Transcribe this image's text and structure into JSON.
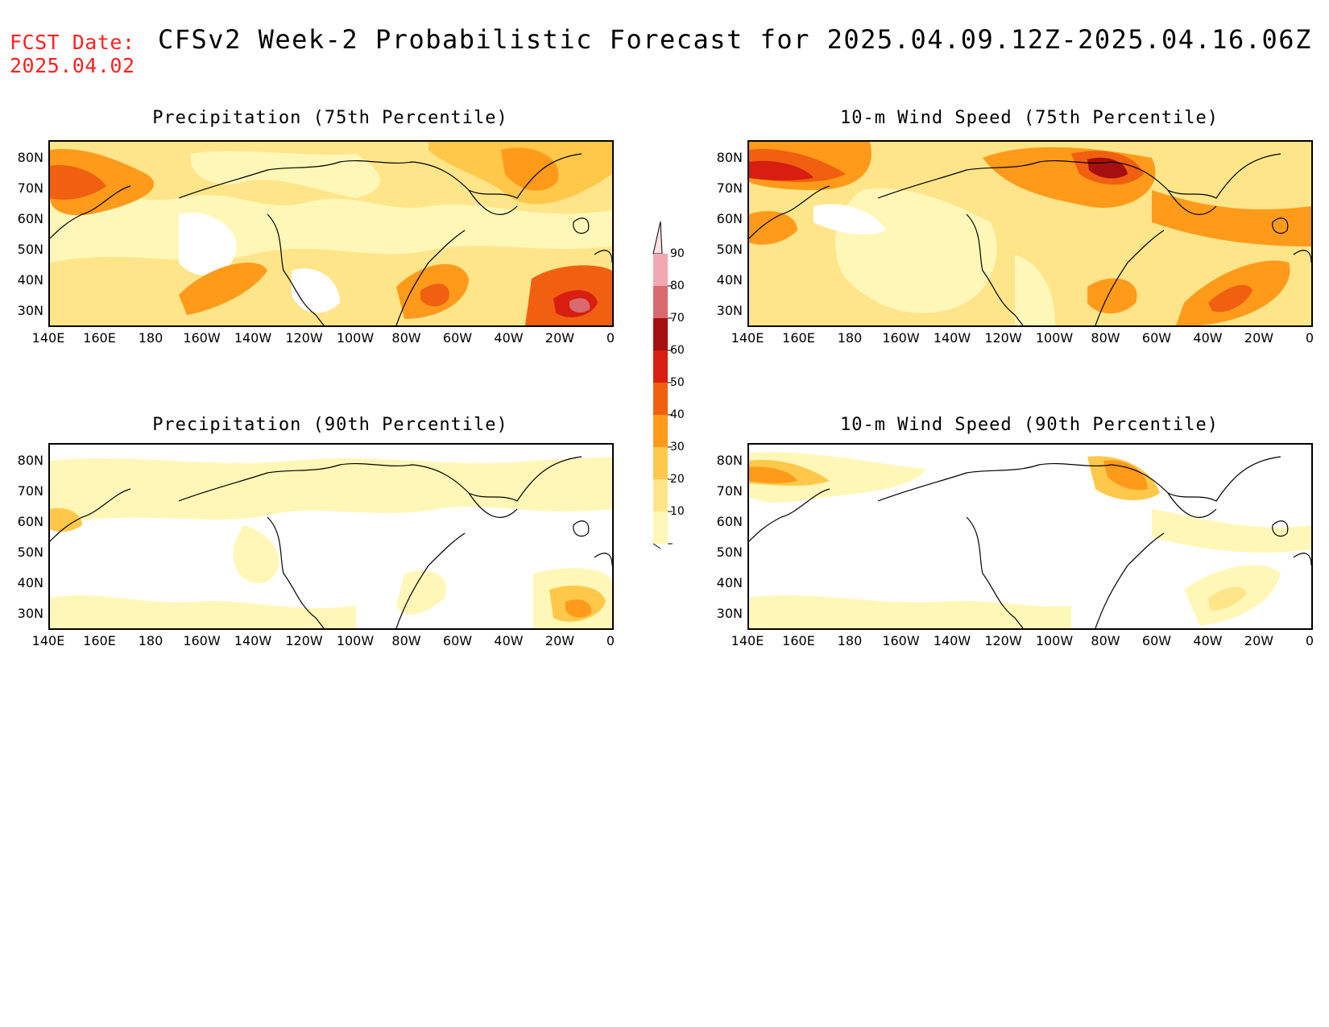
{
  "header": {
    "fcst_label": "FCST Date:",
    "fcst_date": "2025.04.02",
    "title": "CFSv2 Week-2 Probabilistic Forecast for 2025.04.09.12Z-2025.04.16.06Z"
  },
  "panels": [
    {
      "title": "Precipitation (75th Percentile)"
    },
    {
      "title": "10-m Wind Speed (75th Percentile)"
    },
    {
      "title": "Precipitation (90th Percentile)"
    },
    {
      "title": "10-m Wind Speed (90th Percentile)"
    }
  ],
  "axes": {
    "lat_labels": [
      "80N",
      "70N",
      "60N",
      "50N",
      "40N",
      "30N"
    ],
    "lon_labels": [
      "140E",
      "160E",
      "180",
      "160W",
      "140W",
      "120W",
      "100W",
      "80W",
      "60W",
      "40W",
      "20W",
      "0"
    ]
  },
  "colorbar": {
    "labels": [
      "90",
      "80",
      "70",
      "60",
      "50",
      "40",
      "30",
      "20",
      "10"
    ],
    "colors": {
      "c10": "#fff7b8",
      "c20": "#ffe58a",
      "c30": "#ffc84a",
      "c40": "#ff9a1a",
      "c50": "#f06010",
      "c60": "#d81e10",
      "c70": "#a50f0f",
      "c80": "#d86a70",
      "c90": "#f2a8b0"
    }
  }
}
